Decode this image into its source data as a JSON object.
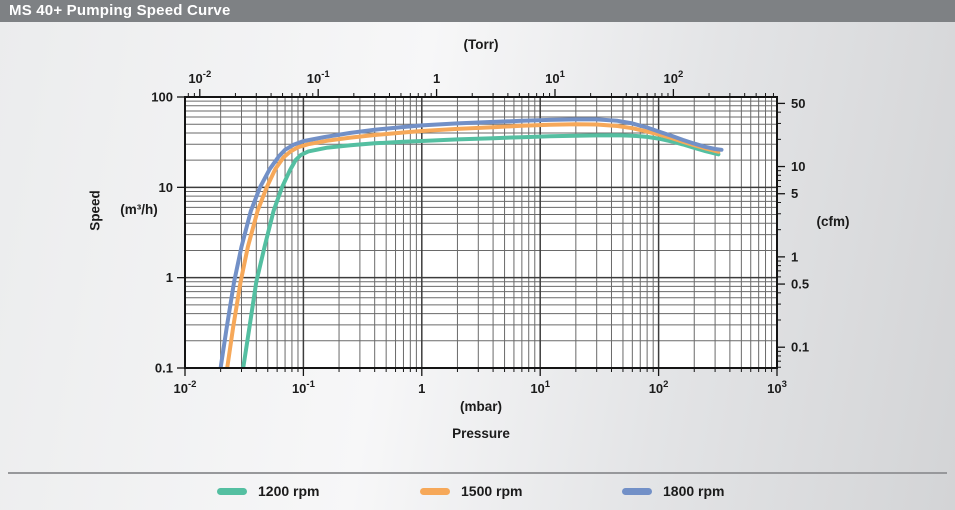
{
  "header": {
    "title": "MS 40+ Pumping Speed Curve"
  },
  "axes": {
    "top": {
      "unit": "(Torr)",
      "to_mbar": 1.33322,
      "ticks": [
        {
          "value": 0.01,
          "label": "10^-2"
        },
        {
          "value": 0.1,
          "label": "10^-1"
        },
        {
          "value": 1,
          "label": "1"
        },
        {
          "value": 10,
          "label": "10^1"
        },
        {
          "value": 100,
          "label": "10^2"
        }
      ]
    },
    "bottom": {
      "unit": "(mbar)",
      "axis_title": "Pressure",
      "range": [
        0.01,
        1000
      ],
      "ticks": [
        {
          "value": 0.01,
          "label": "10^-2"
        },
        {
          "value": 0.1,
          "label": "10^-1"
        },
        {
          "value": 1,
          "label": "1"
        },
        {
          "value": 10,
          "label": "10^1"
        },
        {
          "value": 100,
          "label": "10^2"
        },
        {
          "value": 1000,
          "label": "10^3"
        }
      ]
    },
    "left": {
      "axis_title": "Speed",
      "unit": "(m³/h)",
      "range": [
        0.1,
        100
      ],
      "ticks": [
        {
          "value": 100,
          "label": "100"
        },
        {
          "value": 10,
          "label": "10"
        },
        {
          "value": 1,
          "label": "1"
        },
        {
          "value": 0.1,
          "label": "0.1"
        }
      ]
    },
    "right": {
      "unit": "(cfm)",
      "to_m3h": 1.699011,
      "ticks": [
        {
          "value": 50,
          "label": "50"
        },
        {
          "value": 10,
          "label": "10"
        },
        {
          "value": 5,
          "label": "5"
        },
        {
          "value": 1,
          "label": "1"
        },
        {
          "value": 0.5,
          "label": "0.5"
        },
        {
          "value": 0.1,
          "label": "0.1"
        }
      ]
    }
  },
  "legend": [
    {
      "label": "1200 rpm",
      "color": "#54bfa1"
    },
    {
      "label": "1500 rpm",
      "color": "#f6a859"
    },
    {
      "label": "1800 rpm",
      "color": "#7290c7"
    }
  ],
  "chart_data": {
    "type": "line",
    "title": "MS 40+ Pumping Speed Curve",
    "xlabel": "Pressure (mbar), log scale 1e-2 to 1e3; secondary top axis (Torr)",
    "ylabel": "Speed (m³/h), log scale 0.1 to 100; secondary right axis (cfm)",
    "xlim": [
      0.01,
      1000
    ],
    "ylim": [
      0.1,
      100
    ],
    "grid": "log major+minor, both axes",
    "legend_position": "bottom",
    "series": [
      {
        "name": "1200 rpm",
        "color": "#54bfa1",
        "points": [
          [
            0.031,
            0.1
          ],
          [
            0.035,
            0.28
          ],
          [
            0.04,
            0.9
          ],
          [
            0.047,
            2.2
          ],
          [
            0.056,
            5.5
          ],
          [
            0.066,
            10
          ],
          [
            0.077,
            15.5
          ],
          [
            0.086,
            20
          ],
          [
            0.095,
            22.8
          ],
          [
            0.11,
            25
          ],
          [
            0.16,
            27.5
          ],
          [
            0.25,
            29.3
          ],
          [
            0.4,
            30.7
          ],
          [
            0.7,
            31.9
          ],
          [
            1,
            32.6
          ],
          [
            2,
            33.9
          ],
          [
            4,
            35
          ],
          [
            7,
            35.9
          ],
          [
            12,
            36.7
          ],
          [
            20,
            37.3
          ],
          [
            30,
            37.6
          ],
          [
            45,
            37.7
          ],
          [
            60,
            37.3
          ],
          [
            80,
            36.2
          ],
          [
            100,
            34.6
          ],
          [
            130,
            32.2
          ],
          [
            160,
            29.9
          ],
          [
            200,
            27.3
          ],
          [
            250,
            25.1
          ],
          [
            320,
            23.2
          ]
        ]
      },
      {
        "name": "1500 rpm",
        "color": "#f6a859",
        "points": [
          [
            0.0227,
            0.1
          ],
          [
            0.0255,
            0.28
          ],
          [
            0.0295,
            0.9
          ],
          [
            0.034,
            2.2
          ],
          [
            0.041,
            5.5
          ],
          [
            0.049,
            10
          ],
          [
            0.058,
            16
          ],
          [
            0.068,
            21.5
          ],
          [
            0.078,
            25
          ],
          [
            0.09,
            27.8
          ],
          [
            0.11,
            30
          ],
          [
            0.16,
            32.8
          ],
          [
            0.25,
            35.5
          ],
          [
            0.4,
            38
          ],
          [
            0.7,
            40.5
          ],
          [
            1,
            42
          ],
          [
            2,
            44.3
          ],
          [
            4,
            46.3
          ],
          [
            7,
            48
          ],
          [
            12,
            49.3
          ],
          [
            20,
            50
          ],
          [
            30,
            49.6
          ],
          [
            45,
            47.8
          ],
          [
            60,
            45.2
          ],
          [
            80,
            41.5
          ],
          [
            100,
            38.5
          ],
          [
            130,
            35
          ],
          [
            160,
            32
          ],
          [
            200,
            29.3
          ],
          [
            250,
            27
          ],
          [
            320,
            24.8
          ]
        ]
      },
      {
        "name": "1800 rpm",
        "color": "#7290c7",
        "points": [
          [
            0.02,
            0.1
          ],
          [
            0.0225,
            0.28
          ],
          [
            0.026,
            0.9
          ],
          [
            0.03,
            2.2
          ],
          [
            0.036,
            5.5
          ],
          [
            0.043,
            10
          ],
          [
            0.052,
            16
          ],
          [
            0.062,
            22
          ],
          [
            0.07,
            26
          ],
          [
            0.082,
            29.5
          ],
          [
            0.1,
            32.5
          ],
          [
            0.15,
            36
          ],
          [
            0.25,
            40
          ],
          [
            0.4,
            43.5
          ],
          [
            0.7,
            46.5
          ],
          [
            1,
            48.5
          ],
          [
            2,
            51
          ],
          [
            4,
            53
          ],
          [
            7,
            54.5
          ],
          [
            12,
            55.8
          ],
          [
            20,
            56.5
          ],
          [
            30,
            56.5
          ],
          [
            45,
            54.5
          ],
          [
            60,
            51
          ],
          [
            80,
            46
          ],
          [
            100,
            41.5
          ],
          [
            130,
            37
          ],
          [
            160,
            33.5
          ],
          [
            200,
            30.5
          ],
          [
            250,
            28
          ],
          [
            300,
            26.6
          ],
          [
            340,
            26
          ]
        ]
      }
    ]
  }
}
